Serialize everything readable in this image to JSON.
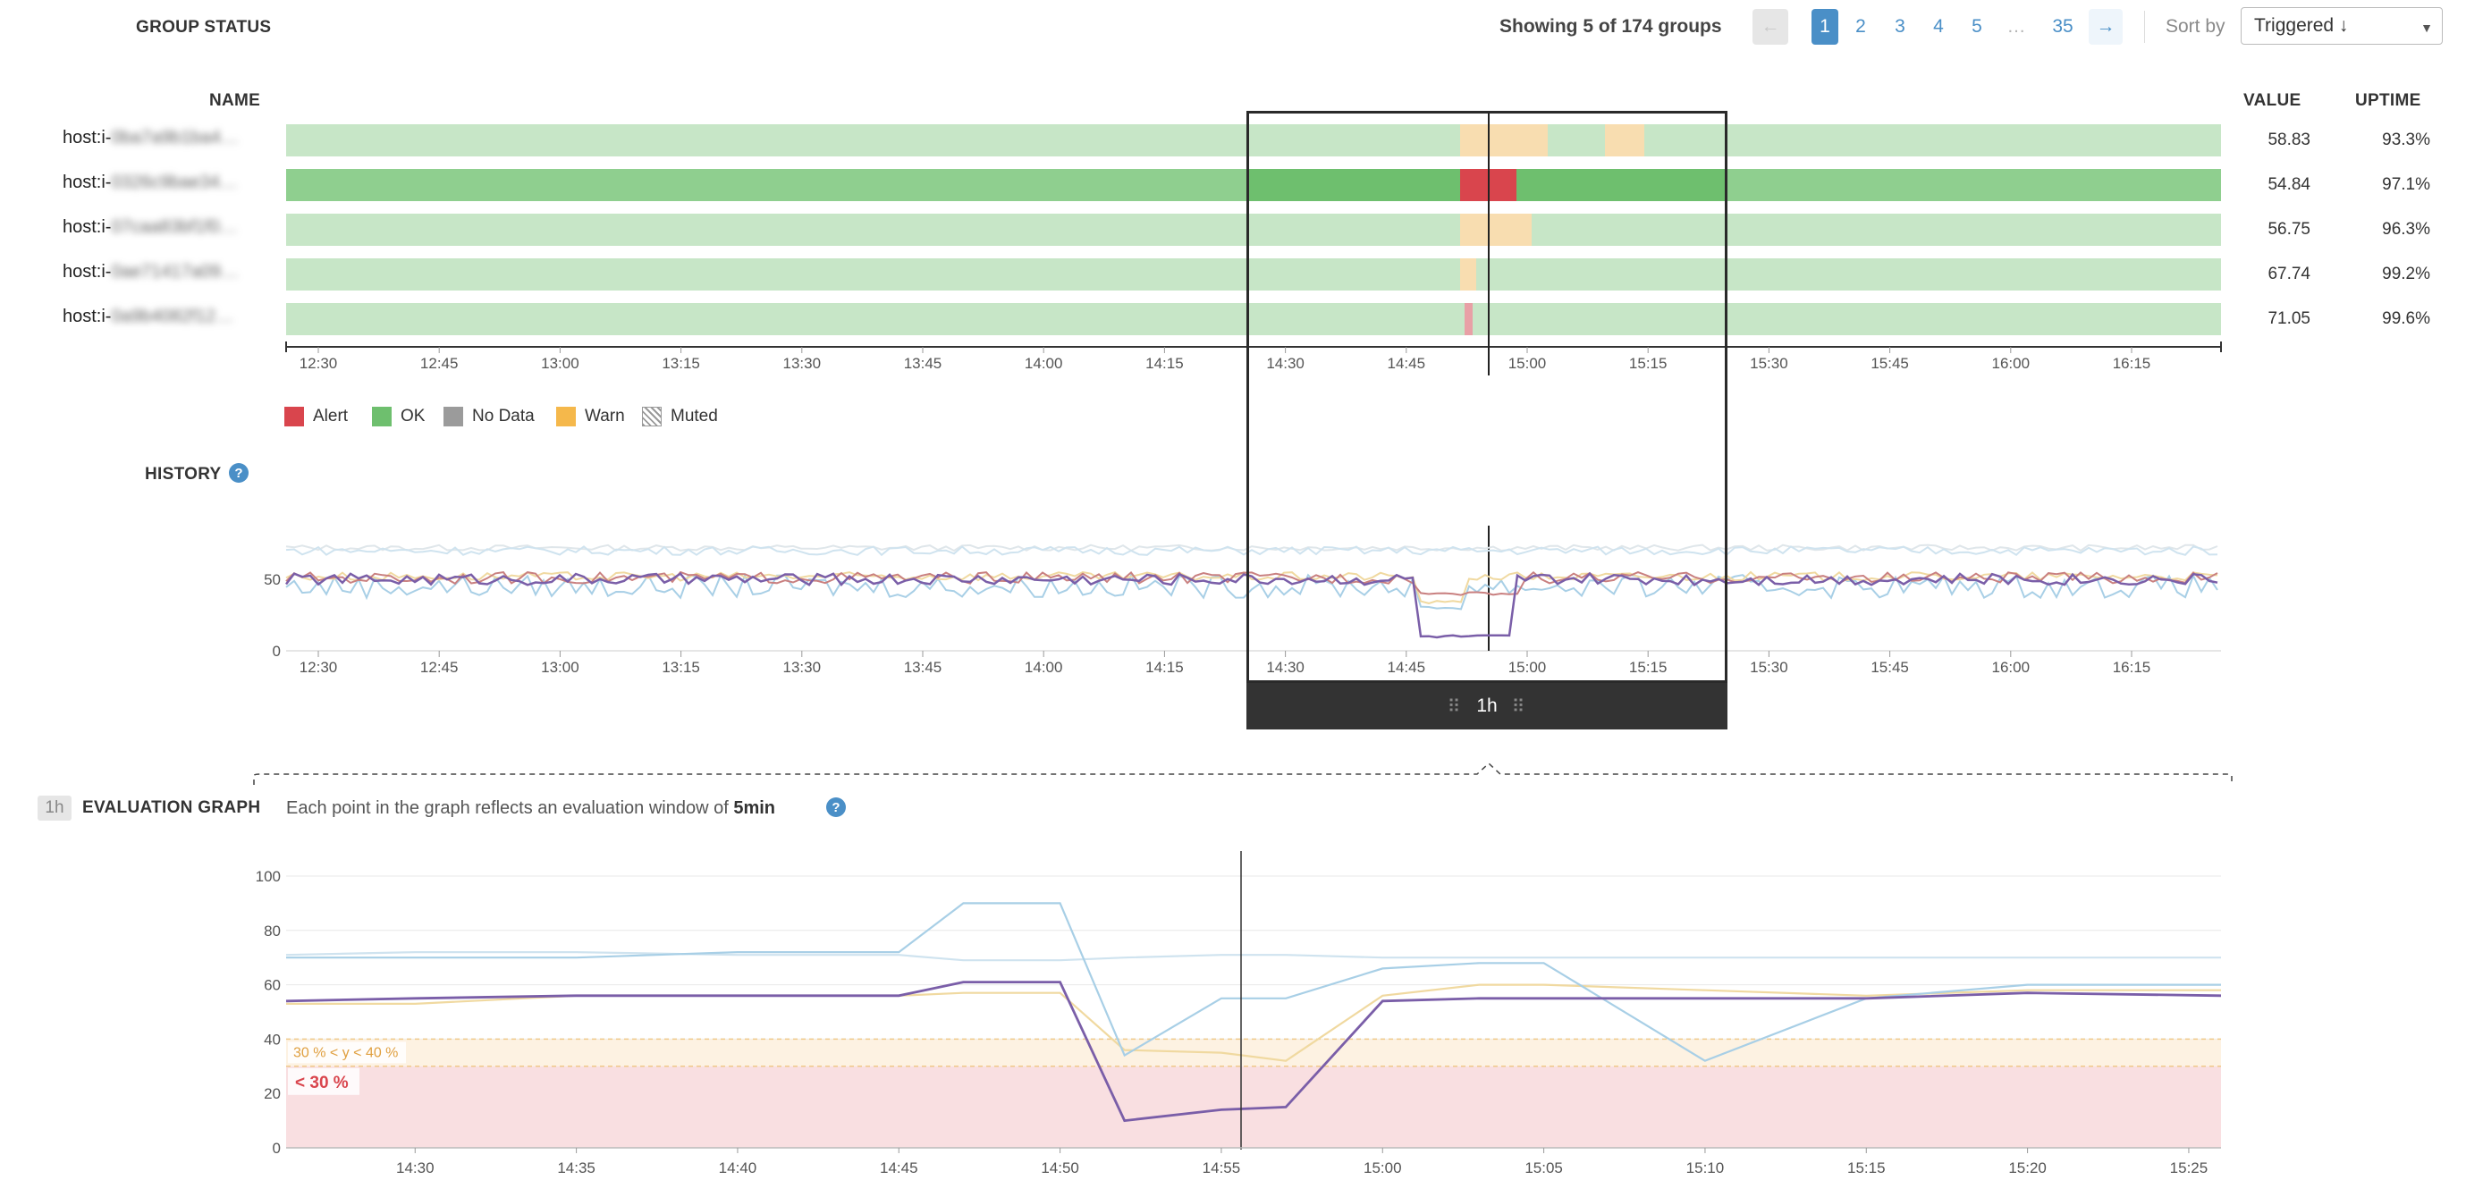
{
  "header": {
    "title": "GROUP STATUS",
    "showing": "Showing 5 of 174 groups",
    "pagination": {
      "prev": "←",
      "pages": [
        "1",
        "2",
        "3",
        "4",
        "5",
        "…",
        "35"
      ],
      "active": "1",
      "next": "→"
    },
    "sort_label": "Sort by",
    "sort_value": "Triggered ↓"
  },
  "columns": {
    "name": "NAME",
    "value": "VALUE",
    "uptime": "UPTIME"
  },
  "groups": [
    {
      "prefix": "host:i-",
      "suffix": "0ba7a9b1ba4…",
      "value": "58.83",
      "uptime": "93.3%"
    },
    {
      "prefix": "host:i-",
      "suffix": "0326c9bae34…",
      "value": "54.84",
      "uptime": "97.1%"
    },
    {
      "prefix": "host:i-",
      "suffix": "07caa83bf1f0…",
      "value": "56.75",
      "uptime": "96.3%"
    },
    {
      "prefix": "host:i-",
      "suffix": "0ae71417a09…",
      "value": "67.74",
      "uptime": "99.2%"
    },
    {
      "prefix": "host:i-",
      "suffix": "0a9b4082f12…",
      "value": "71.05",
      "uptime": "99.6%"
    }
  ],
  "time_axis": [
    "12:30",
    "12:45",
    "13:00",
    "13:15",
    "13:30",
    "13:45",
    "14:00",
    "14:15",
    "14:30",
    "14:45",
    "15:00",
    "15:15",
    "15:30",
    "15:45",
    "16:00",
    "16:15"
  ],
  "legend": [
    {
      "label": "Alert",
      "color": "#d9454d"
    },
    {
      "label": "OK",
      "color": "#6ebf6e"
    },
    {
      "label": "No Data",
      "color": "#9b9b9b"
    },
    {
      "label": "Warn",
      "color": "#f5b84b"
    },
    {
      "label": "Muted",
      "color": "hatch"
    }
  ],
  "history": {
    "title": "HISTORY",
    "help": "?",
    "y_ticks": [
      "50",
      "0"
    ]
  },
  "range_selector": {
    "label": "1h"
  },
  "evaluation": {
    "badge": "1h",
    "title": "EVALUATION GRAPH",
    "desc_prefix": "Each point in the graph reflects an evaluation window of",
    "desc_window": "5min",
    "help": "?",
    "y_ticks": [
      "100",
      "80",
      "60",
      "40",
      "20",
      "0"
    ],
    "x_ticks": [
      "14:30",
      "14:35",
      "14:40",
      "14:45",
      "14:50",
      "14:55",
      "15:00",
      "15:05",
      "15:10",
      "15:15",
      "15:20",
      "15:25"
    ],
    "warn_band_label": "30 % < y < 40 %",
    "alert_band_label": "< 30 %"
  },
  "chart_data": {
    "type": "line",
    "x": [
      "14:26",
      "14:30",
      "14:35",
      "14:40",
      "14:45",
      "14:47",
      "14:50",
      "14:52",
      "14:55",
      "14:57",
      "15:00",
      "15:03",
      "15:05",
      "15:10",
      "15:15",
      "15:20",
      "15:26"
    ],
    "series": [
      {
        "color": "#7a5ea8",
        "values": [
          54,
          55,
          56,
          56,
          56,
          61,
          61,
          10,
          14,
          15,
          54,
          55,
          55,
          55,
          55,
          57,
          56
        ]
      },
      {
        "color": "#a8cfe6",
        "values": [
          70,
          70,
          70,
          72,
          72,
          90,
          90,
          34,
          55,
          55,
          66,
          68,
          68,
          32,
          55,
          60,
          60
        ]
      },
      {
        "color": "#cfe3ef",
        "values": [
          71,
          72,
          72,
          71,
          71,
          69,
          69,
          70,
          71,
          71,
          70,
          70,
          70,
          70,
          70,
          70,
          70
        ]
      },
      {
        "color": "#f0d9a0",
        "values": [
          53,
          53,
          56,
          56,
          56,
          57,
          57,
          36,
          35,
          32,
          56,
          60,
          60,
          58,
          56,
          58,
          58
        ]
      }
    ],
    "ylim": [
      0,
      100
    ],
    "thresholds": {
      "warn": [
        30,
        40
      ],
      "alert": [
        0,
        30
      ]
    }
  },
  "colors": {
    "ok_light": "#c7e6c7",
    "ok": "#8fcf8f",
    "ok_dark": "#6ebf6e",
    "warn_light": "#f8ddb0",
    "alert": "#d9454d",
    "alert_light": "#e8a0a6",
    "link": "#4a8fc7"
  }
}
